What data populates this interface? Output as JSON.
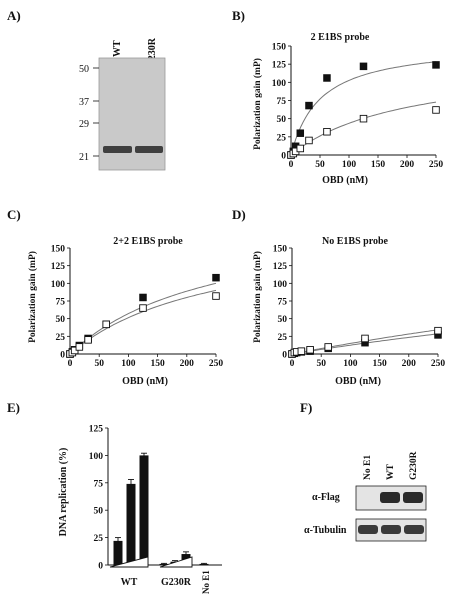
{
  "panels": {
    "A": {
      "label": "A)",
      "lanes": [
        "WT",
        "G230R"
      ],
      "markers": [
        "50",
        "37",
        "29",
        "21"
      ]
    },
    "F": {
      "label": "F)",
      "lanes": [
        "No E1",
        "WT",
        "G230R"
      ],
      "rows": [
        "α-Flag",
        "α-Tubulin"
      ]
    }
  },
  "chart_data": [
    {
      "panel": "B)",
      "type": "scatter",
      "title": "2 E1BS probe",
      "xlabel": "OBD (nM)",
      "ylabel": "Polarization gain (mP)",
      "xlim": [
        0,
        250
      ],
      "ylim": [
        0,
        150
      ],
      "xticks": [
        0,
        50,
        100,
        150,
        200,
        250
      ],
      "yticks": [
        0,
        25,
        50,
        75,
        100,
        125,
        150
      ],
      "series": [
        {
          "marker": "filled-square",
          "x": [
            0,
            4,
            8,
            16,
            31,
            62,
            125,
            250
          ],
          "y": [
            0,
            5,
            12,
            30,
            68,
            106,
            122,
            124
          ],
          "fit_kd": 50,
          "fit_bmax": 154
        },
        {
          "marker": "open-square",
          "x": [
            0,
            4,
            8,
            16,
            31,
            62,
            125,
            250
          ],
          "y": [
            0,
            2,
            5,
            9,
            20,
            32,
            50,
            62
          ],
          "fit_kd": 200,
          "fit_bmax": 131
        }
      ]
    },
    {
      "panel": "C)",
      "type": "scatter",
      "title": "2+2 E1BS probe",
      "xlabel": "OBD (nM)",
      "ylabel": "Polarization gain (mP)",
      "xlim": [
        0,
        250
      ],
      "ylim": [
        0,
        150
      ],
      "xticks": [
        0,
        50,
        100,
        150,
        200,
        250
      ],
      "yticks": [
        0,
        25,
        50,
        75,
        100,
        125,
        150
      ],
      "series": [
        {
          "marker": "filled-square",
          "x": [
            0,
            4,
            8,
            16,
            31,
            62,
            125,
            250
          ],
          "y": [
            0,
            3,
            6,
            12,
            22,
            42,
            80,
            108
          ],
          "fit_kd": 250,
          "fit_bmax": 200
        },
        {
          "marker": "open-square",
          "x": [
            0,
            4,
            8,
            16,
            31,
            62,
            125,
            250
          ],
          "y": [
            0,
            2,
            5,
            10,
            20,
            42,
            65,
            82
          ],
          "fit_kd": 250,
          "fit_bmax": 180
        }
      ]
    },
    {
      "panel": "D)",
      "type": "scatter",
      "title": "No E1BS probe",
      "xlabel": "OBD (nM)",
      "ylabel": "Polarization gain (mP)",
      "xlim": [
        0,
        250
      ],
      "ylim": [
        0,
        150
      ],
      "xticks": [
        0,
        50,
        100,
        150,
        200,
        250
      ],
      "yticks": [
        0,
        25,
        50,
        75,
        100,
        125,
        150
      ],
      "series": [
        {
          "marker": "filled-square",
          "x": [
            0,
            4,
            8,
            16,
            31,
            62,
            125,
            250
          ],
          "y": [
            0,
            1,
            2,
            3,
            4,
            8,
            16,
            27
          ],
          "fit_kd": 1500,
          "fit_bmax": 200
        },
        {
          "marker": "open-square",
          "x": [
            0,
            4,
            8,
            16,
            31,
            62,
            125,
            250
          ],
          "y": [
            0,
            2,
            3,
            4,
            6,
            10,
            22,
            33
          ],
          "fit_kd": 1500,
          "fit_bmax": 240
        }
      ]
    },
    {
      "panel": "E)",
      "type": "bar",
      "ylabel": "DNA replication (%)",
      "ylim": [
        0,
        125
      ],
      "yticks": [
        0,
        25,
        50,
        75,
        100,
        125
      ],
      "groups": [
        "WT",
        "G230R",
        "No E1"
      ],
      "values": [
        22,
        74,
        100,
        1,
        3,
        10,
        1
      ],
      "errors": [
        3,
        4,
        2,
        0.5,
        1,
        2,
        0.5
      ],
      "group_index": [
        0,
        0,
        0,
        1,
        1,
        1,
        2
      ]
    }
  ]
}
